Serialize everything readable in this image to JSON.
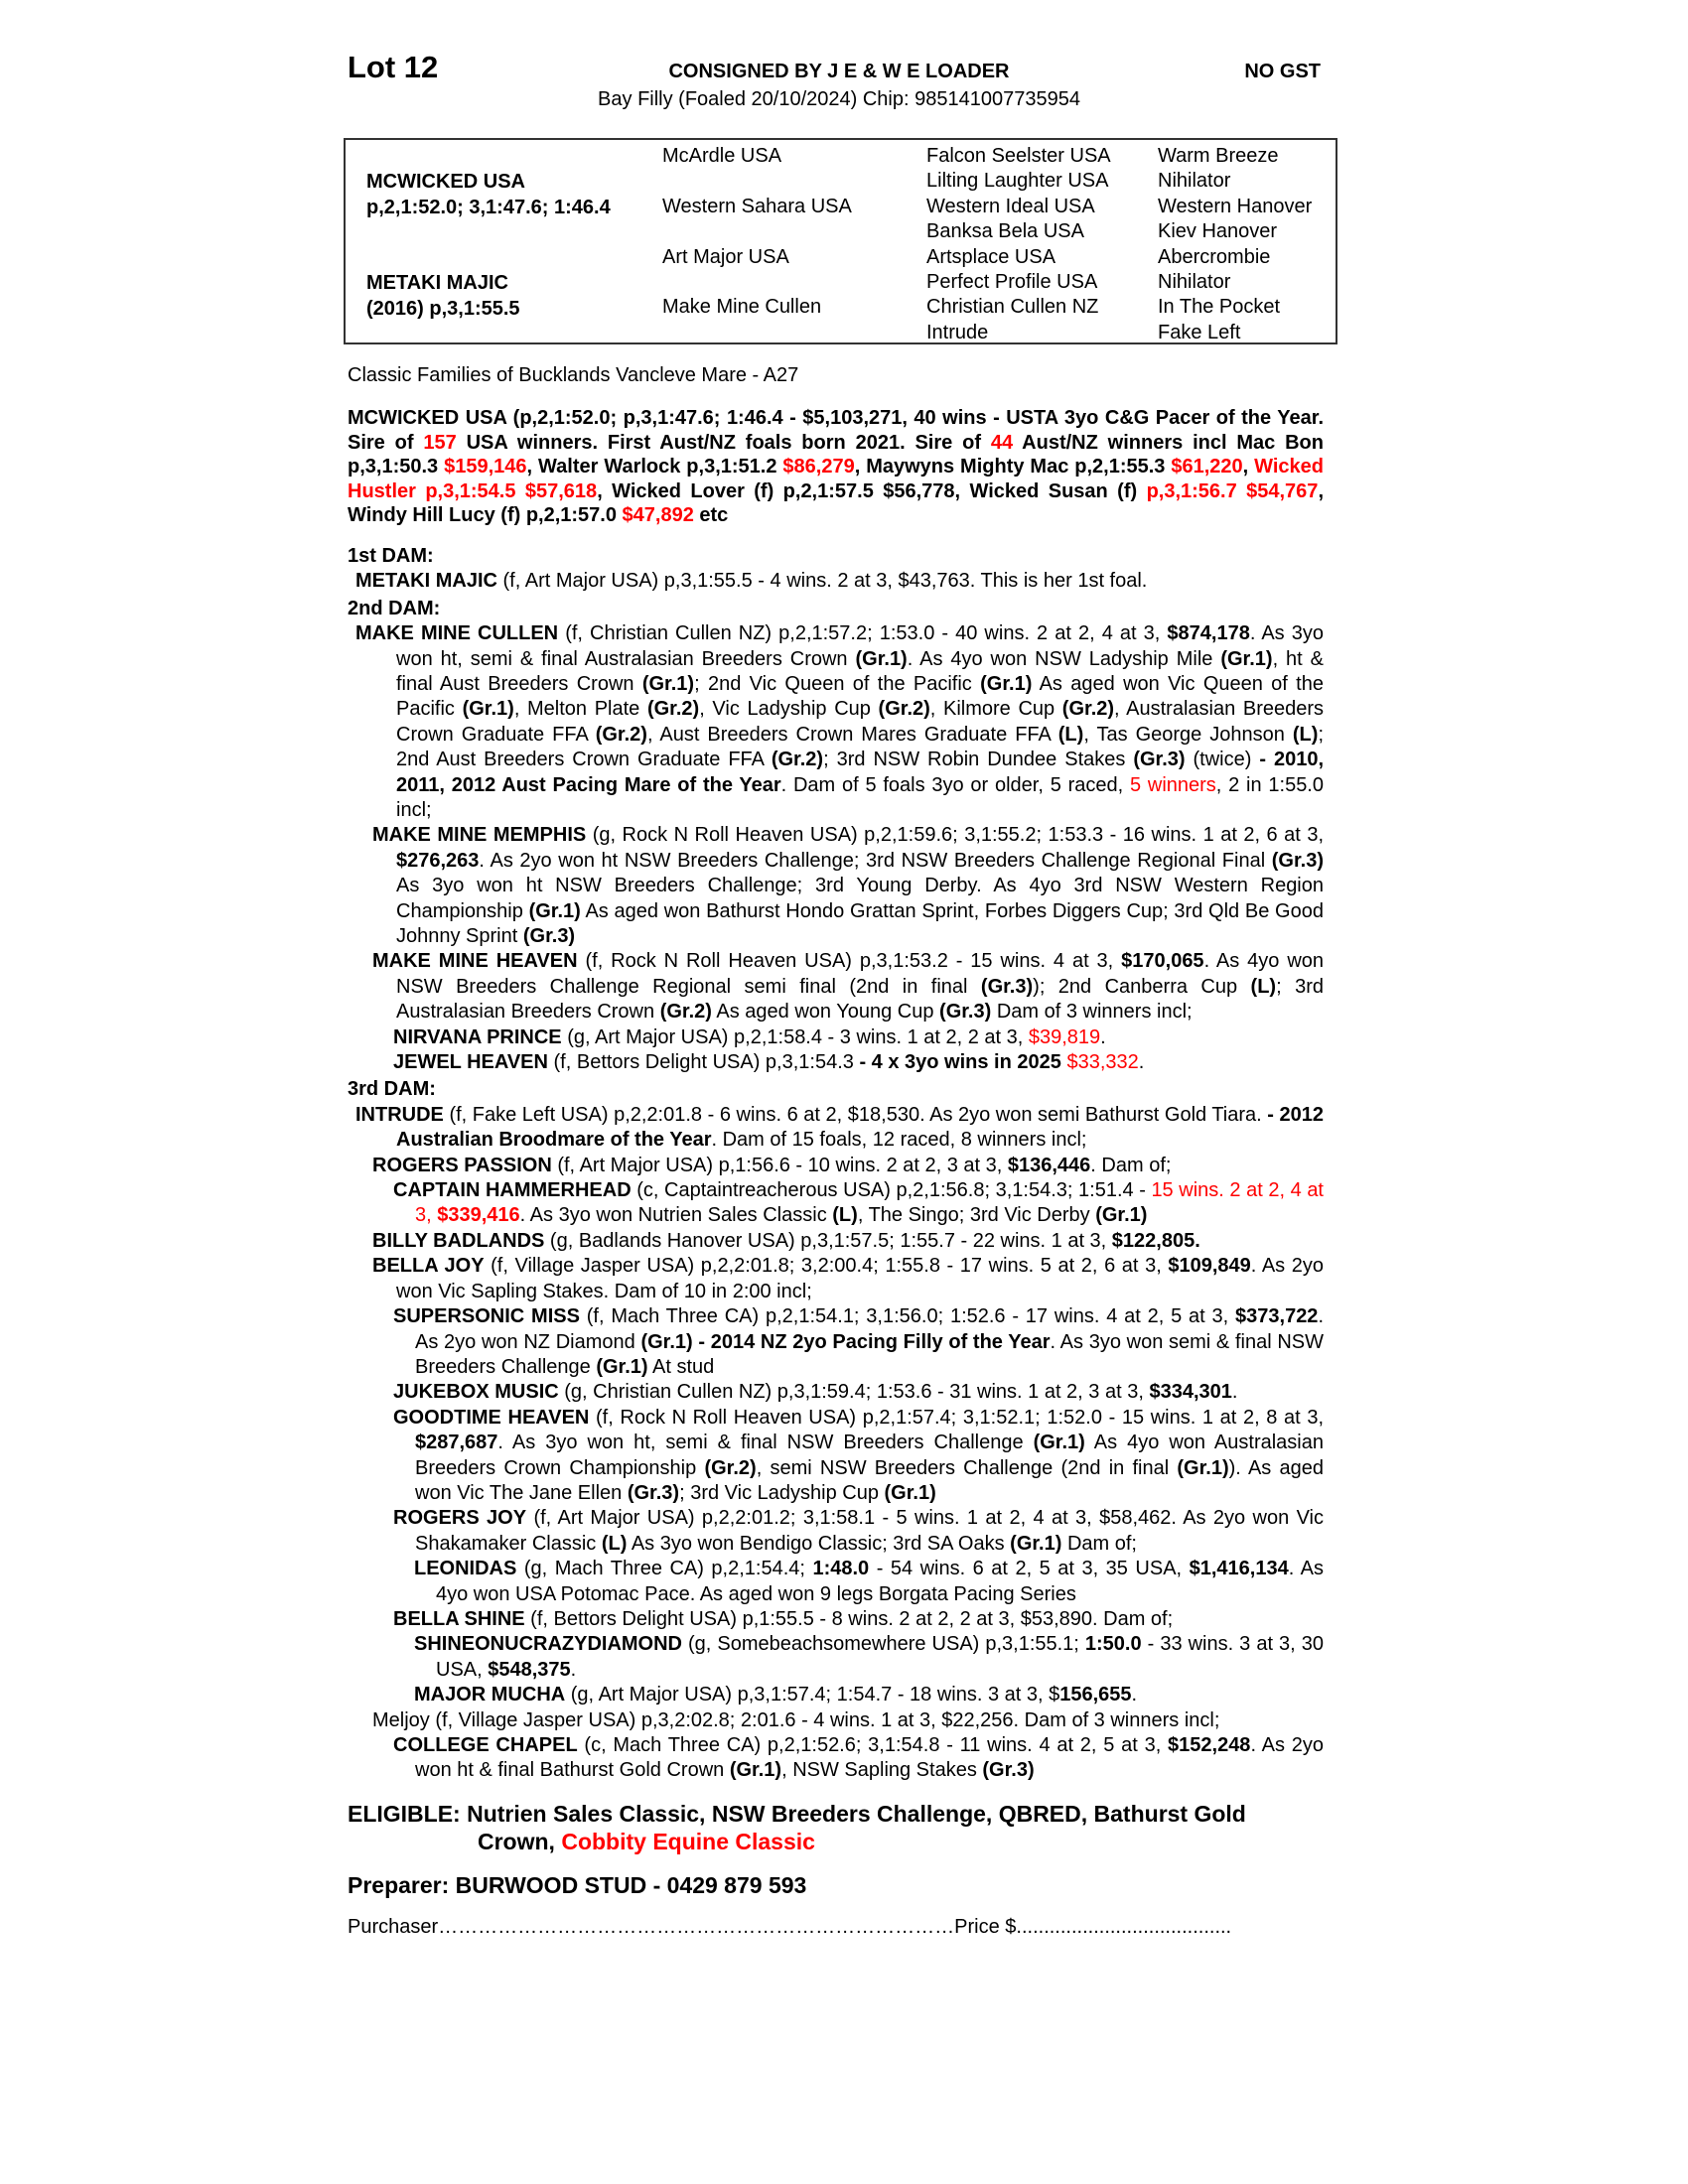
{
  "header": {
    "lot": "Lot 12",
    "consigned": "CONSIGNED BY J E & W E LOADER",
    "gst": "NO GST",
    "subtitle": "Bay Filly (Foaled 20/10/2024) Chip: 985141007735954"
  },
  "pedigree": {
    "sire": "MCWICKED USA",
    "sire_record": "p,2,1:52.0; 3,1:47.6; 1:46.4",
    "dam": "METAKI MAJIC",
    "dam_record": "(2016) p,3,1:55.5",
    "gen2": [
      "McArdle USA",
      "Western Sahara USA",
      "Art Major USA",
      "Make Mine Cullen"
    ],
    "gen3": [
      "Falcon Seelster USA",
      "Lilting Laughter USA",
      "Western Ideal USA",
      "Banksa Bela USA",
      "Artsplace USA",
      "Perfect Profile USA",
      "Christian Cullen NZ",
      "Intrude"
    ],
    "gen4": [
      "Warm Breeze",
      "Nihilator",
      "Western Hanover",
      "Kiev Hanover",
      "Abercrombie",
      "Nihilator",
      "In The Pocket",
      "Fake Left"
    ]
  },
  "family": "Classic Families of Bucklands Vancleve Mare - A27",
  "accent_color": "#ff0000",
  "sire_para": [
    [
      "MCWICKED USA (p,2,1:52.0; p,3,1:47.6; 1:46.4 - $5,103,271, 40 wins - USTA 3yo C&G Pacer of the Year. Sire of ",
      "b"
    ],
    [
      "157",
      "br"
    ],
    [
      " USA winners. First Aust/NZ foals born 2021. Sire of ",
      "b"
    ],
    [
      "44",
      "br"
    ],
    [
      " Aust/NZ winners incl Mac Bon p,3,1:50.3 ",
      "b"
    ],
    [
      "$159,146",
      "br"
    ],
    [
      ", Walter Warlock p,3,1:51.2 ",
      "b"
    ],
    [
      "$86,279",
      "br"
    ],
    [
      ", Maywyns Mighty Mac p,2,1:55.3 ",
      "b"
    ],
    [
      "$61,220",
      "br"
    ],
    [
      ", ",
      "b"
    ],
    [
      "Wicked Hustler p,3,1:54.5 $57,618",
      "br"
    ],
    [
      ", Wicked Lover (f) p,2,1:57.5 $56,778, Wicked Susan (f) ",
      "b"
    ],
    [
      "p,3,1:56.7 $54,767",
      "br"
    ],
    [
      ", Windy Hill Lucy (f) p,2,1:57.0 ",
      "b"
    ],
    [
      "$47,892",
      "br"
    ],
    [
      " etc",
      "b"
    ]
  ],
  "dams": [
    {
      "heading": "1st DAM:",
      "entries": [
        {
          "level": 0,
          "runs": [
            [
              "METAKI MAJIC",
              "b"
            ],
            [
              " (f, Art Major USA) p,3,1:55.5 - 4 wins. 2 at 3, $43,763. This is her 1st foal.",
              ""
            ]
          ]
        }
      ]
    },
    {
      "heading": "2nd DAM:",
      "entries": [
        {
          "level": 0,
          "runs": [
            [
              "MAKE MINE CULLEN",
              "b"
            ],
            [
              " (f, Christian Cullen NZ) p,2,1:57.2; 1:53.0 - 40 wins. 2 at 2, 4 at 3, ",
              ""
            ],
            [
              "$874,178",
              "b"
            ],
            [
              ". As 3yo won ht, semi & final Australasian Breeders Crown ",
              ""
            ],
            [
              "(Gr.1)",
              "b"
            ],
            [
              ". As 4yo won NSW Ladyship Mile ",
              ""
            ],
            [
              "(Gr.1)",
              "b"
            ],
            [
              ", ht & final Aust Breeders Crown ",
              ""
            ],
            [
              "(Gr.1)",
              "b"
            ],
            [
              "; 2nd Vic Queen of the Pacific ",
              ""
            ],
            [
              "(Gr.1)",
              "b"
            ],
            [
              " As aged won Vic Queen of the Pacific ",
              ""
            ],
            [
              "(Gr.1)",
              "b"
            ],
            [
              ", Melton Plate ",
              ""
            ],
            [
              "(Gr.2)",
              "b"
            ],
            [
              ", Vic Ladyship Cup ",
              ""
            ],
            [
              "(Gr.2)",
              "b"
            ],
            [
              ", Kilmore Cup ",
              ""
            ],
            [
              "(Gr.2)",
              "b"
            ],
            [
              ", Australasian Breeders Crown Graduate FFA ",
              ""
            ],
            [
              "(Gr.2)",
              "b"
            ],
            [
              ", Aust Breeders Crown Mares Graduate FFA ",
              ""
            ],
            [
              "(L)",
              "b"
            ],
            [
              ", Tas George Johnson ",
              ""
            ],
            [
              "(L)",
              "b"
            ],
            [
              "; 2nd Aust Breeders Crown Graduate FFA ",
              ""
            ],
            [
              "(Gr.2)",
              "b"
            ],
            [
              "; 3rd NSW Robin Dundee Stakes ",
              ""
            ],
            [
              "(Gr.3)",
              "b"
            ],
            [
              " (twice) ",
              ""
            ],
            [
              "- 2010, 2011, 2012 Aust Pacing Mare of the Year",
              "b"
            ],
            [
              ". Dam of 5 foals 3yo or older, 5 raced, ",
              ""
            ],
            [
              "5 winners",
              "r"
            ],
            [
              ", 2 in 1:55.0 incl;",
              ""
            ]
          ]
        },
        {
          "level": 1,
          "runs": [
            [
              "MAKE MINE MEMPHIS",
              "b"
            ],
            [
              " (g, Rock N Roll Heaven USA) p,2,1:59.6; 3,1:55.2; 1:53.3 - 16 wins. 1 at 2, 6 at 3, ",
              ""
            ],
            [
              "$276,263",
              "b"
            ],
            [
              ". As 2yo won ht NSW Breeders Challenge; 3rd NSW Breeders Challenge Regional Final ",
              ""
            ],
            [
              "(Gr.3)",
              "b"
            ],
            [
              " As 3yo won ht NSW Breeders Challenge; 3rd Young Derby. As 4yo 3rd NSW Western Region Championship ",
              ""
            ],
            [
              "(Gr.1)",
              "b"
            ],
            [
              " As aged won Bathurst Hondo Grattan Sprint, Forbes Diggers Cup; 3rd Qld Be Good Johnny Sprint ",
              ""
            ],
            [
              "(Gr.3)",
              "b"
            ]
          ]
        },
        {
          "level": 1,
          "runs": [
            [
              "MAKE MINE HEAVEN",
              "b"
            ],
            [
              " (f, Rock N Roll Heaven USA) p,3,1:53.2 - 15 wins. 4 at 3, ",
              ""
            ],
            [
              "$170,065",
              "b"
            ],
            [
              ". As 4yo won NSW Breeders Challenge Regional semi final (2nd in final ",
              ""
            ],
            [
              "(Gr.3)",
              "b"
            ],
            [
              "); 2nd Canberra Cup ",
              ""
            ],
            [
              "(L)",
              "b"
            ],
            [
              "; 3rd Australasian Breeders Crown ",
              ""
            ],
            [
              "(Gr.2)",
              "b"
            ],
            [
              " As aged won Young Cup ",
              ""
            ],
            [
              "(Gr.3)",
              "b"
            ],
            [
              " Dam of 3 winners incl;",
              ""
            ]
          ]
        },
        {
          "level": 2,
          "runs": [
            [
              "NIRVANA PRINCE",
              "b"
            ],
            [
              " (g, Art Major USA) p,2,1:58.4 - 3 wins. 1 at 2, 2 at 3, ",
              ""
            ],
            [
              "$39,819",
              "r"
            ],
            [
              ".",
              ""
            ]
          ]
        },
        {
          "level": 2,
          "runs": [
            [
              "JEWEL HEAVEN",
              "b"
            ],
            [
              " (f, Bettors Delight USA) p,3,1:54.3 ",
              ""
            ],
            [
              "- 4 x 3yo wins in 2025",
              "b"
            ],
            [
              " ",
              ""
            ],
            [
              "$33,332",
              "r"
            ],
            [
              ".",
              ""
            ]
          ]
        }
      ]
    },
    {
      "heading": "3rd DAM:",
      "entries": [
        {
          "level": 0,
          "runs": [
            [
              "INTRUDE",
              "b"
            ],
            [
              " (f, Fake Left USA) p,2,2:01.8 - 6 wins. 6 at 2, $18,530. As 2yo won semi Bathurst Gold Tiara. ",
              ""
            ],
            [
              "- 2012 Australian Broodmare of the Year",
              "b"
            ],
            [
              ". Dam of 15 foals, 12 raced, 8 winners incl;",
              ""
            ]
          ]
        },
        {
          "level": 1,
          "runs": [
            [
              "ROGERS PASSION",
              "b"
            ],
            [
              " (f, Art Major USA) p,1:56.6 - 10 wins. 2 at 2, 3 at 3, ",
              ""
            ],
            [
              "$136,446",
              "b"
            ],
            [
              ". Dam of;",
              ""
            ]
          ]
        },
        {
          "level": 2,
          "runs": [
            [
              "CAPTAIN HAMMERHEAD",
              "b"
            ],
            [
              " (c, Captaintreacherous USA) p,2,1:56.8; 3,1:54.3; 1:51.4 - ",
              ""
            ],
            [
              "15 wins. 2 at 2, 4 at 3, ",
              "r"
            ],
            [
              "$339,416",
              "br"
            ],
            [
              ". As 3yo won Nutrien Sales Classic ",
              ""
            ],
            [
              "(L)",
              "b"
            ],
            [
              ", The Singo; 3rd Vic Derby ",
              ""
            ],
            [
              "(Gr.1)",
              "b"
            ]
          ]
        },
        {
          "level": 1,
          "runs": [
            [
              "BILLY BADLANDS",
              "b"
            ],
            [
              " (g, Badlands Hanover USA) p,3,1:57.5; 1:55.7 - 22 wins. 1 at 3, ",
              ""
            ],
            [
              "$122,805.",
              "b"
            ]
          ]
        },
        {
          "level": 1,
          "runs": [
            [
              "BELLA JOY",
              "b"
            ],
            [
              " (f, Village Jasper USA) p,2,2:01.8; 3,2:00.4; 1:55.8 - 17 wins. 5 at 2, 6 at 3, ",
              ""
            ],
            [
              "$109,849",
              "b"
            ],
            [
              ". As 2yo won Vic Sapling Stakes. Dam of 10 in 2:00 incl;",
              ""
            ]
          ]
        },
        {
          "level": 2,
          "runs": [
            [
              "SUPERSONIC MISS",
              "b"
            ],
            [
              " (f, Mach Three CA) p,2,1:54.1; 3,1:56.0; 1:52.6 - 17 wins. 4 at 2, 5 at 3, ",
              ""
            ],
            [
              "$373,722",
              "b"
            ],
            [
              ". As 2yo won NZ Diamond ",
              ""
            ],
            [
              "(Gr.1) - 2014 NZ 2yo Pacing Filly of the Year",
              "b"
            ],
            [
              ". As 3yo won semi & final NSW Breeders Challenge ",
              ""
            ],
            [
              "(Gr.1)",
              "b"
            ],
            [
              " At stud",
              ""
            ]
          ]
        },
        {
          "level": 2,
          "runs": [
            [
              "JUKEBOX MUSIC",
              "b"
            ],
            [
              " (g, Christian Cullen NZ) p,3,1:59.4; 1:53.6 - 31 wins. 1 at 2, 3 at 3, ",
              ""
            ],
            [
              "$334,301",
              "b"
            ],
            [
              ".",
              ""
            ]
          ]
        },
        {
          "level": 2,
          "runs": [
            [
              "GOODTIME HEAVEN",
              "b"
            ],
            [
              " (f, Rock N Roll Heaven USA) p,2,1:57.4; 3,1:52.1; 1:52.0 - 15 wins. 1 at 2, 8 at 3, ",
              ""
            ],
            [
              "$287,687",
              "b"
            ],
            [
              ". As 3yo won ht, semi & final NSW Breeders Challenge ",
              ""
            ],
            [
              "(Gr.1)",
              "b"
            ],
            [
              " As 4yo won Australasian Breeders Crown Championship ",
              ""
            ],
            [
              "(Gr.2)",
              "b"
            ],
            [
              ", semi NSW Breeders Challenge (2nd in final ",
              ""
            ],
            [
              "(Gr.1)",
              "b"
            ],
            [
              "). As aged won Vic The Jane Ellen ",
              ""
            ],
            [
              "(Gr.3)",
              "b"
            ],
            [
              "; 3rd Vic Ladyship Cup ",
              ""
            ],
            [
              "(Gr.1)",
              "b"
            ]
          ]
        },
        {
          "level": 2,
          "runs": [
            [
              "ROGERS JOY",
              "b"
            ],
            [
              " (f, Art Major USA) p,2,2:01.2; 3,1:58.1 - 5 wins. 1 at 2, 4 at 3, $58,462. As 2yo won Vic Shakamaker Classic ",
              ""
            ],
            [
              "(L)",
              "b"
            ],
            [
              " As 3yo won Bendigo Classic; 3rd SA Oaks ",
              ""
            ],
            [
              "(Gr.1)",
              "b"
            ],
            [
              " Dam of;",
              ""
            ]
          ]
        },
        {
          "level": 3,
          "runs": [
            [
              "LEONIDAS",
              "b"
            ],
            [
              " (g, Mach Three CA) p,2,1:54.4; ",
              ""
            ],
            [
              "1:48.0",
              "b"
            ],
            [
              " - 54 wins. 6 at 2, 5 at 3, 35 USA, ",
              ""
            ],
            [
              "$1,416,134",
              "b"
            ],
            [
              ". As 4yo won USA Potomac Pace. As aged won 9 legs Borgata Pacing Series",
              ""
            ]
          ]
        },
        {
          "level": 2,
          "runs": [
            [
              "BELLA SHINE",
              "b"
            ],
            [
              " (f, Bettors Delight USA) p,1:55.5 - 8 wins. 2 at 2, 2 at 3, $53,890. Dam of;",
              ""
            ]
          ]
        },
        {
          "level": 3,
          "runs": [
            [
              "SHINEONUCRAZYDIAMOND",
              "b"
            ],
            [
              " (g, Somebeachsomewhere USA) p,3,1:55.1; ",
              ""
            ],
            [
              "1:50.0",
              "b"
            ],
            [
              " - 33 wins. 3 at 3, 30 USA, ",
              ""
            ],
            [
              "$548,375",
              "b"
            ],
            [
              ".",
              ""
            ]
          ]
        },
        {
          "level": 3,
          "runs": [
            [
              "MAJOR MUCHA",
              "b"
            ],
            [
              " (g, Art Major USA) p,3,1:57.4; 1:54.7 - 18 wins. 3 at 3, $",
              ""
            ],
            [
              "156,655",
              "b"
            ],
            [
              ".",
              ""
            ]
          ]
        },
        {
          "level": 1,
          "runs": [
            [
              "Meljoy (f, Village Jasper USA) p,3,2:02.8; 2:01.6 - 4 wins. 1 at 3, $22,256. Dam of 3 winners incl;",
              ""
            ]
          ]
        },
        {
          "level": 2,
          "runs": [
            [
              "COLLEGE CHAPEL",
              "b"
            ],
            [
              " (c, Mach Three CA) p,2,1:52.6; 3,1:54.8 - 11 wins. 4 at 2, 5 at 3, ",
              ""
            ],
            [
              "$152,248",
              "b"
            ],
            [
              ". As 2yo won ht & final Bathurst Gold Crown ",
              ""
            ],
            [
              "(Gr.1)",
              "b"
            ],
            [
              ", NSW Sapling Stakes ",
              ""
            ],
            [
              "(Gr.3)",
              "b"
            ]
          ]
        }
      ]
    }
  ],
  "eligible": [
    [
      "ELIGIBLE: Nutrien Sales Classic, NSW Breeders Challenge, QBRED, Bathurst Gold Crown, ",
      ""
    ],
    [
      "Cobbity Equine Classic",
      "r"
    ]
  ],
  "preparer": "Preparer: BURWOOD STUD - 0429 879 593",
  "purchaser": {
    "label": "Purchaser",
    "purchaser_dots": "……………………………………………………………………",
    "price_label": "Price $",
    "price_dots": "......................................."
  }
}
